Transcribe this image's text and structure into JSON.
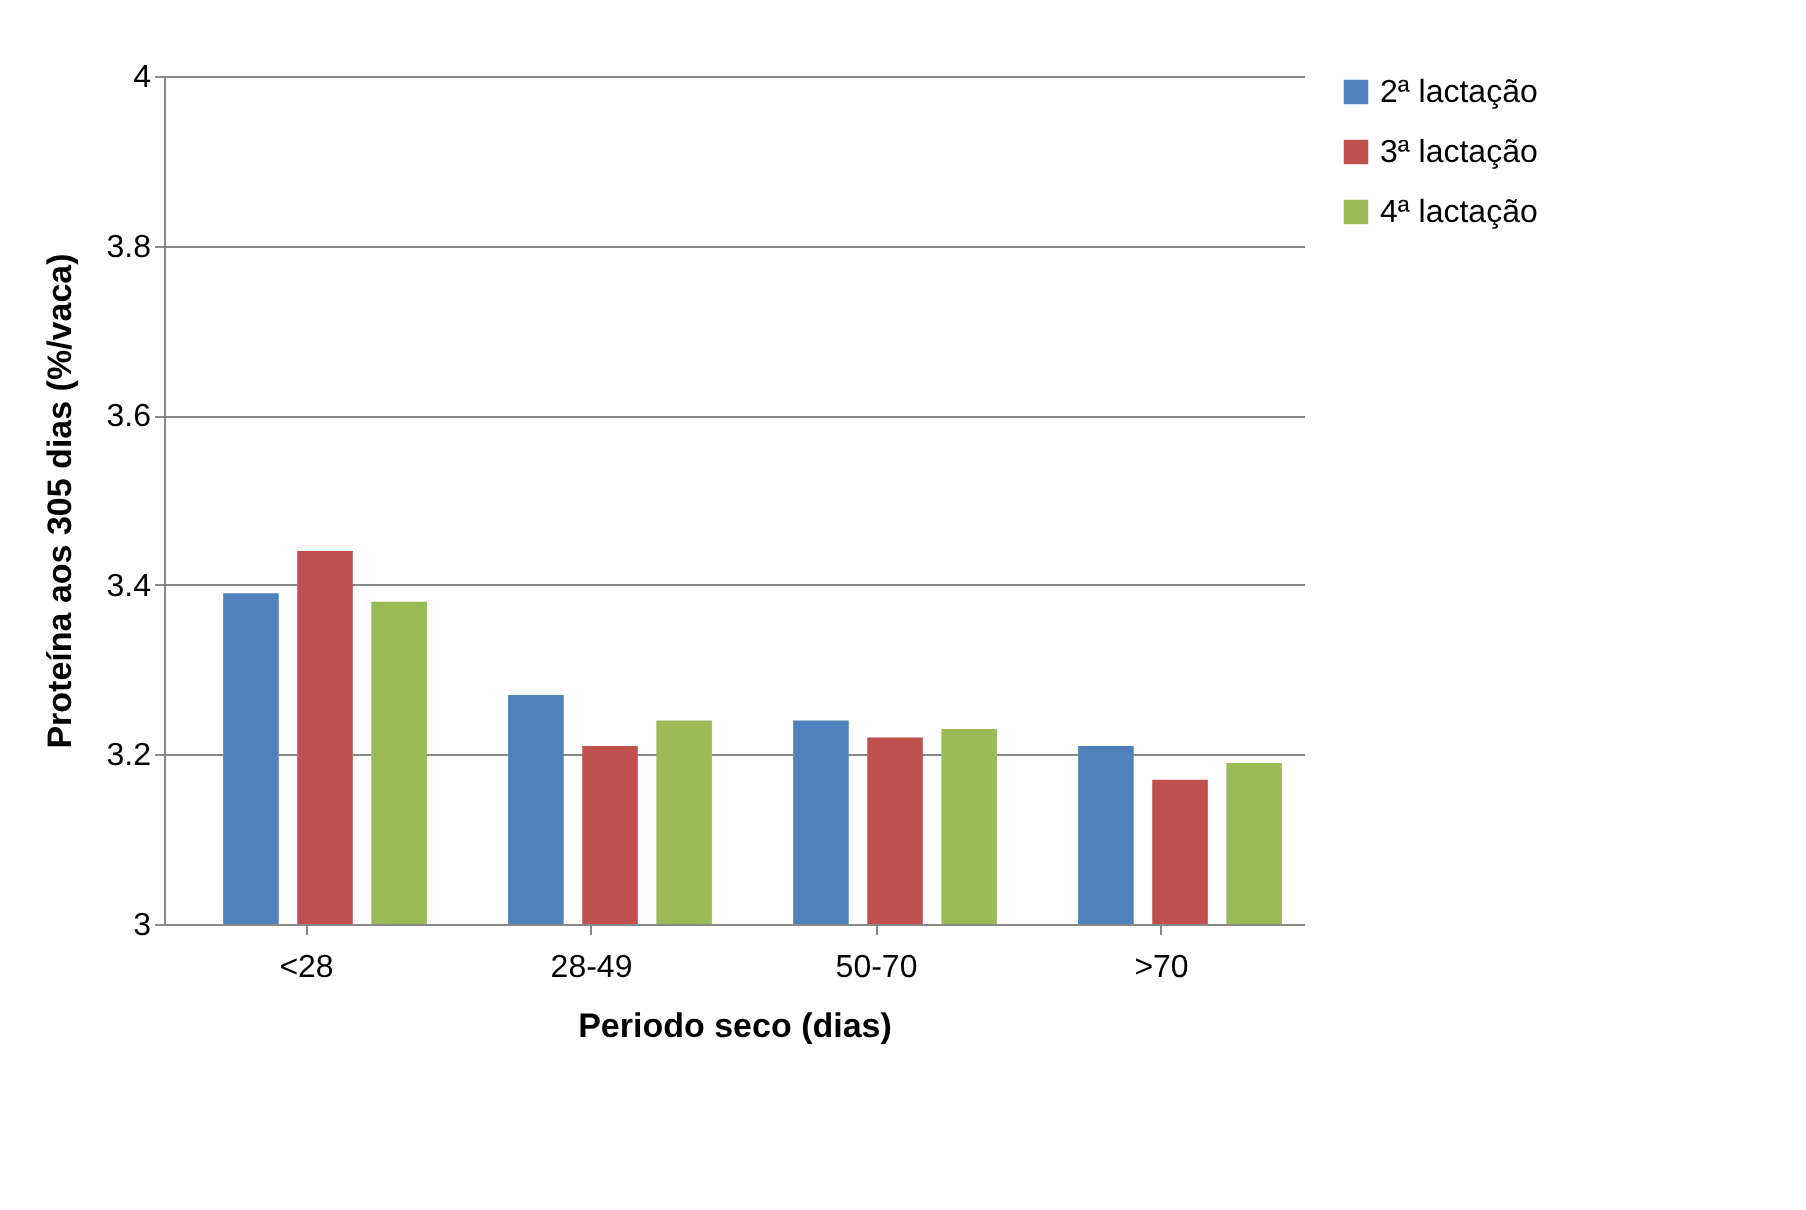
{
  "chart_data": {
    "type": "bar",
    "xlabel": "Periodo seco (dias)",
    "ylabel": "Proteína aos 305 dias (%/vaca)",
    "categories": [
      "<28",
      "28-49",
      "50-70",
      ">70"
    ],
    "series": [
      {
        "name": "2ª lactação",
        "color": "#4f81bd",
        "values": [
          3.39,
          3.27,
          3.24,
          3.21
        ]
      },
      {
        "name": "3ª lactação",
        "color": "#c0504d",
        "values": [
          3.44,
          3.21,
          3.22,
          3.17
        ]
      },
      {
        "name": "4ª lactação",
        "color": "#9bbb59",
        "values": [
          3.38,
          3.24,
          3.23,
          3.19
        ]
      }
    ],
    "ylim": [
      3,
      4
    ],
    "yticks": [
      3,
      3.2,
      3.4,
      3.6,
      3.8,
      4
    ],
    "grid": "y",
    "legend": "right"
  }
}
